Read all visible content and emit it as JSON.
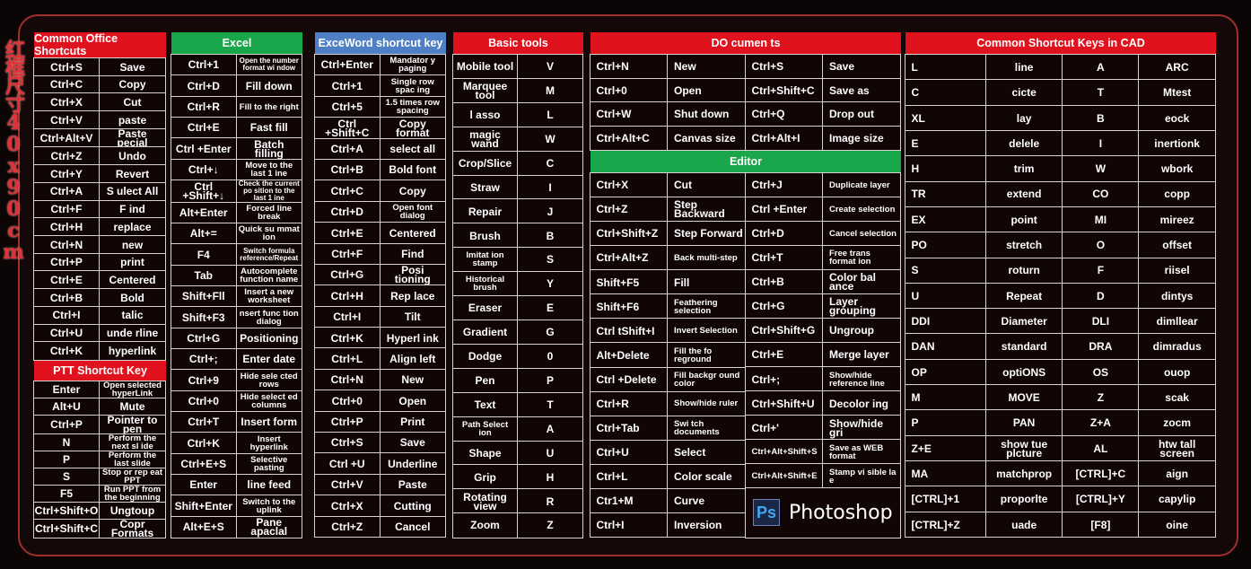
{
  "side_label": "红框尺寸40x90cm",
  "colors": {
    "red_header": "#e0121e",
    "green_header": "#1aa64a",
    "blue_header": "#4f7fc4",
    "cell_bg": "#120506",
    "border": "#d8d2d0"
  },
  "office": {
    "title": "Common Office Shortcuts",
    "rows": [
      [
        "Ctrl+S",
        "Save"
      ],
      [
        "Ctrl+C",
        "Copy"
      ],
      [
        "Ctrl+X",
        "Cut"
      ],
      [
        "Ctrl+V",
        "paste"
      ],
      [
        "Ctrl+Alt+V",
        "Paste pecial"
      ],
      [
        "Ctrl+Z",
        "Undo"
      ],
      [
        "Ctrl+Y",
        "Revert"
      ],
      [
        "Ctrl+A",
        "S ulect All"
      ],
      [
        "Ctrl+F",
        "F ind"
      ],
      [
        "Ctrl+H",
        "replace"
      ],
      [
        "Ctrl+N",
        "new"
      ],
      [
        "Ctrl+P",
        "print"
      ],
      [
        "Ctrl+E",
        "Centered"
      ],
      [
        "Ctrl+B",
        "Bold"
      ],
      [
        "Ctrl+I",
        "talic"
      ],
      [
        "Ctrl+U",
        "unde rline"
      ],
      [
        "Ctrl+K",
        "hyperlink"
      ]
    ]
  },
  "ppt": {
    "title": "PTT Shortcut Key",
    "rows": [
      [
        "Enter",
        "Open selected hyperLink"
      ],
      [
        "Alt+U",
        "Mute"
      ],
      [
        "Ctrl+P",
        "Pointer to pen"
      ],
      [
        "N",
        "Perform the next sl ide"
      ],
      [
        "P",
        "Perform the last slide"
      ],
      [
        "S",
        "Stop or rep eat PPT"
      ],
      [
        "F5",
        "Run PPT from the beginning"
      ],
      [
        "Ctrl+Shift+O",
        "Ungtoup"
      ],
      [
        "Ctrl+Shift+C",
        "Copr Formats"
      ]
    ]
  },
  "excel": {
    "title": "Excel",
    "rows": [
      [
        "Ctrl+1",
        "Open the number format wi ndow"
      ],
      [
        "Ctrl+D",
        "Fill down"
      ],
      [
        "Ctrl+R",
        "Fill to the right"
      ],
      [
        "Ctrl+E",
        "Fast fill"
      ],
      [
        "Ctrl +Enter",
        "Batch filling"
      ],
      [
        "Ctrl+↓",
        "Move to the last 1 ine"
      ],
      [
        "Ctrl +Shift+↓",
        "Check the current po sition to the last 1 ine"
      ],
      [
        "Alt+Enter",
        "Forced line break"
      ],
      [
        "Alt+=",
        "Quick su mmat ion"
      ],
      [
        "F4",
        "Switch formula reference/Repeat"
      ],
      [
        "Tab",
        "Autocomplete function name"
      ],
      [
        "Shift+Fll",
        "Insert a new worksheet"
      ],
      [
        "Shift+F3",
        "nsert func tion dialog"
      ],
      [
        "Ctrl+G",
        "Positioning"
      ],
      [
        "Ctrl+;",
        "Enter date"
      ],
      [
        "Ctrl+9",
        "Hide sele cted rows"
      ],
      [
        "Ctrl+0",
        "Hide select ed columns"
      ],
      [
        "Ctrl+T",
        "Insert form"
      ],
      [
        "Ctrl+K",
        "Insert hyperlink"
      ],
      [
        "Ctrl+E+S",
        "Selective pasting"
      ],
      [
        "Enter",
        "line feed"
      ],
      [
        "Shift+Enter",
        "Switch to the uplink"
      ],
      [
        "Alt+E+S",
        "Pane apaclal"
      ]
    ]
  },
  "word": {
    "title": "ExceWord shortcut key",
    "rows": [
      [
        "Ctrl+Enter",
        "Mandator y paging"
      ],
      [
        "Ctrl+1",
        "Single row spac ing"
      ],
      [
        "Ctrl+5",
        "1.5 times row spacing"
      ],
      [
        "Ctrl +Shift+C",
        "Copy format"
      ],
      [
        "Ctrl+A",
        "select all"
      ],
      [
        "Ctrl+B",
        "Bold font"
      ],
      [
        "Ctrl+C",
        "Copy"
      ],
      [
        "Ctrl+D",
        "Open font dialog"
      ],
      [
        "Ctrl+E",
        "Centered"
      ],
      [
        "Ctrl+F",
        "Find"
      ],
      [
        "Ctrl+G",
        "Posi tioning"
      ],
      [
        "Ctrl+H",
        "Rep lace"
      ],
      [
        "Ctrl+I",
        "Tilt"
      ],
      [
        "Ctrl+K",
        "Hyperl ink"
      ],
      [
        "Ctrl+L",
        "Align left"
      ],
      [
        "Ctrl+N",
        "New"
      ],
      [
        "Ctrl+0",
        "Open"
      ],
      [
        "Ctrl+P",
        "Print"
      ],
      [
        "Ctrl+S",
        "Save"
      ],
      [
        "Ctrl +U",
        "Underline"
      ],
      [
        "Ctrl+V",
        "Paste"
      ],
      [
        "Ctrl+X",
        "Cutting"
      ],
      [
        "Ctrl+Z",
        "Cancel"
      ]
    ]
  },
  "basic": {
    "title": "Basic tools",
    "rows": [
      [
        "Mobile tool",
        "V"
      ],
      [
        "Marquee tool",
        "M"
      ],
      [
        "l asso",
        "L"
      ],
      [
        "magic wand",
        "W"
      ],
      [
        "Crop/Slice",
        "C"
      ],
      [
        "Straw",
        "I"
      ],
      [
        "Repair",
        "J"
      ],
      [
        "Brush",
        "B"
      ],
      [
        "Imitat ion stamp",
        "S"
      ],
      [
        "Historical brush",
        "Y"
      ],
      [
        "Eraser",
        "E"
      ],
      [
        "Gradient",
        "G"
      ],
      [
        "Dodge",
        "0"
      ],
      [
        "Pen",
        "P"
      ],
      [
        "Text",
        "T"
      ],
      [
        "Path Select ion",
        "A"
      ],
      [
        "Shape",
        "U"
      ],
      [
        "Grip",
        "H"
      ],
      [
        "Rotating view",
        "R"
      ],
      [
        "Zoom",
        "Z"
      ]
    ]
  },
  "documents": {
    "title": "DO cumen ts",
    "rows": [
      [
        "Ctrl+N",
        "New",
        "Ctrl+S",
        "Save"
      ],
      [
        "Ctrl+0",
        "Open",
        "Ctrl+Shift+C",
        "Save as"
      ],
      [
        "Ctrl+W",
        "Shut down",
        "Ctrl+Q",
        "Drop out"
      ],
      [
        "Ctrl+Alt+C",
        "Canvas size",
        "Ctrl+Alt+I",
        "Image size"
      ]
    ]
  },
  "editor": {
    "title": "Editor",
    "left": [
      [
        "Ctrl+X",
        "Cut"
      ],
      [
        "Ctrl+Z",
        "Step Backward"
      ],
      [
        "Ctrl+Shift+Z",
        "Step Forward"
      ],
      [
        "Ctrl+Alt+Z",
        "Back multi-step"
      ],
      [
        "Shift+F5",
        "Fill"
      ],
      [
        "Shift+F6",
        "Feathering selection"
      ],
      [
        "Ctrl tShift+I",
        "Invert Selection"
      ],
      [
        "Alt+Delete",
        "Fill the fo reground"
      ],
      [
        "Ctrl +Delete",
        "Fill backgr ound color"
      ],
      [
        "Ctrl+R",
        "Show/hide ruler"
      ],
      [
        "Ctrl+Tab",
        "Swi tch documents"
      ],
      [
        "Ctrl+U",
        "Select"
      ],
      [
        "Ctrl+L",
        "Color scale"
      ],
      [
        "Ctr1+M",
        "Curve"
      ],
      [
        "Ctrl+I",
        "Inversion"
      ]
    ],
    "right": [
      [
        "Ctrl+J",
        "Duplicate layer"
      ],
      [
        "Ctrl +Enter",
        "Create selection"
      ],
      [
        "Ctrl+D",
        "Cancel selection"
      ],
      [
        "Ctrl+T",
        "Free trans format ion"
      ],
      [
        "Ctrl+B",
        "Color bal ance"
      ],
      [
        "Ctrl+G",
        "Layer grouping"
      ],
      [
        "Ctrl+Shift+G",
        "Ungroup"
      ],
      [
        "Ctrl+E",
        "Merge layer"
      ],
      [
        "Ctrl+;",
        "Show/hide reference line"
      ],
      [
        "Ctrl+Shift+U",
        "Decolor ing"
      ],
      [
        "Ctrl+'",
        "Show/hide gri"
      ],
      [
        "Ctrl+Alt+Shift+S",
        "Save as WEB format"
      ],
      [
        "Ctrl+Alt+Shift+E",
        "Stamp vi sible la  e"
      ]
    ],
    "logo_icon": "Ps",
    "logo_text": "Photoshop"
  },
  "cad": {
    "title": "Common Shortcut Keys in CAD",
    "rows": [
      [
        "L",
        "line",
        "A",
        "ARC"
      ],
      [
        "C",
        "cicte",
        "T",
        "Mtest"
      ],
      [
        "XL",
        "lay",
        "B",
        "eock"
      ],
      [
        "E",
        "delele",
        "I",
        "inertionk"
      ],
      [
        "H",
        "trim",
        "W",
        "wbork"
      ],
      [
        "TR",
        "extend",
        "CO",
        "copp"
      ],
      [
        "EX",
        "point",
        "MI",
        "mireez"
      ],
      [
        "PO",
        "stretch",
        "O",
        "offset"
      ],
      [
        "S",
        "roturn",
        "F",
        "riisel"
      ],
      [
        "U",
        "Repeat",
        "D",
        "dintys"
      ],
      [
        "DDI",
        "Diameter",
        "DLI",
        "dimllear"
      ],
      [
        "DAN",
        "standard",
        "DRA",
        "dimradus"
      ],
      [
        "OP",
        "optiONS",
        "OS",
        "ouop"
      ],
      [
        "M",
        "MOVE",
        "Z",
        "scak"
      ],
      [
        "P",
        "PAN",
        "Z+A",
        "zocm"
      ],
      [
        "Z+E",
        "show tue plcture",
        "AL",
        "htw tall screen"
      ],
      [
        "MA",
        "matchprop",
        "[CTRL]+C",
        "aign"
      ],
      [
        "[CTRL]+1",
        "proporlte",
        "[CTRL]+Y",
        "capylip"
      ],
      [
        "[CTRL]+Z",
        "uade",
        "[F8]",
        "oine"
      ]
    ]
  }
}
